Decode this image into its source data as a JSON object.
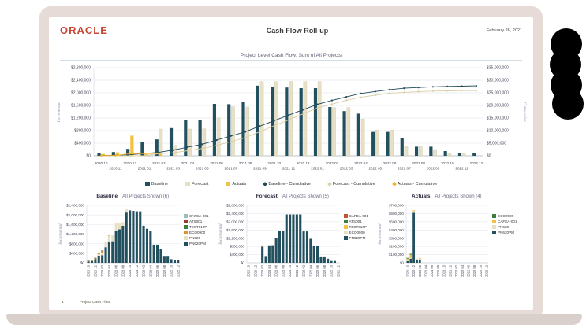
{
  "header": {
    "logo": "ORACLE",
    "title": "Cash Flow Roll-up",
    "date": "February 26, 2021"
  },
  "footer": {
    "page_number": "1",
    "label": "Project Cash Flow"
  },
  "colors": {
    "baseline": "#23505f",
    "forecast": "#e8e0c6",
    "actuals": "#f2c144",
    "baseline_line": "#1f4a58",
    "forecast_line": "#d9cfa6",
    "actuals_line": "#f0b429",
    "oracle_red": "#c74634",
    "bezel": "#e7dbd7",
    "laptop_base": "#d9cfcb",
    "header_rule": "#7ba2bf"
  },
  "chart_data": [
    {
      "type": "combo",
      "title": "Project Level Cash Flow: Sum of All Projects",
      "categories": [
        "2020 10",
        "2020 11",
        "2020 12",
        "2021 01",
        "2021 02",
        "2021 03",
        "2021 04",
        "2021 05",
        "2021 06",
        "2021 07",
        "2021 08",
        "2021 09",
        "2021 10",
        "2021 11",
        "2021 12",
        "2022 01",
        "2022 02",
        "2022 03",
        "2022 04",
        "2022 05",
        "2022 06",
        "2022 07",
        "2022 08",
        "2022 09",
        "2022 10",
        "2022 11",
        "2022 12"
      ],
      "left_axis": {
        "label": "Incremental",
        "min": 0,
        "max": 2800000,
        "step": 400000
      },
      "right_axis": {
        "label": "Cumulative",
        "min": 0,
        "max": 35000000,
        "step": 5000000
      },
      "bar_series": [
        {
          "name": "Baseline",
          "color": "#23505f",
          "values": [
            100000,
            120000,
            220000,
            430000,
            520000,
            880000,
            1150000,
            1150000,
            1650000,
            1640000,
            1700000,
            2230000,
            2190000,
            2170000,
            2150000,
            2150000,
            1550000,
            1420000,
            1340000,
            760000,
            760000,
            560000,
            290000,
            290000,
            150000,
            100000,
            100000
          ]
        },
        {
          "name": "Forecast",
          "color": "#e8e0c6",
          "values": [
            0,
            0,
            0,
            0,
            850000,
            330000,
            850000,
            860000,
            1210000,
            1560000,
            1550000,
            2360000,
            2360000,
            2360000,
            2360000,
            2360000,
            1530000,
            1530000,
            1170000,
            820000,
            820000,
            310000,
            310000,
            200000,
            90000,
            90000,
            0
          ]
        },
        {
          "name": "Actuals",
          "color": "#f2c144",
          "values": [
            60000,
            110000,
            640000,
            50000,
            60000,
            0,
            0,
            0,
            0,
            0,
            0,
            0,
            0,
            0,
            0,
            0,
            0,
            0,
            0,
            0,
            0,
            0,
            0,
            0,
            0,
            0,
            0
          ]
        }
      ],
      "line_series": [
        {
          "name": "Baseline - Cumulative",
          "color": "#1f4a58",
          "values": [
            100000,
            220000,
            440000,
            870000,
            1390000,
            2270000,
            3420000,
            4570000,
            6220000,
            7860000,
            9560000,
            11790000,
            13980000,
            16150000,
            18300000,
            20450000,
            22000000,
            23420000,
            24760000,
            25520000,
            26280000,
            26840000,
            27130000,
            27420000,
            27570000,
            27670000,
            27770000
          ]
        },
        {
          "name": "Forecast - Cumulative",
          "color": "#d9cfa6",
          "values": [
            0,
            0,
            0,
            0,
            850000,
            1180000,
            2030000,
            2890000,
            4100000,
            5660000,
            7210000,
            9570000,
            11930000,
            14290000,
            16650000,
            19010000,
            20540000,
            22070000,
            23240000,
            24060000,
            24880000,
            25190000,
            25500000,
            25700000,
            25790000,
            25880000,
            25880000
          ]
        },
        {
          "name": "Actuals - Cumulative",
          "color": "#f0b429",
          "values": [
            60000,
            170000,
            810000,
            860000,
            920000,
            null,
            null,
            null,
            null,
            null,
            null,
            null,
            null,
            null,
            null,
            null,
            null,
            null,
            null,
            null,
            null,
            null,
            null,
            null,
            null,
            null,
            null
          ]
        }
      ]
    },
    {
      "type": "stacked-bar",
      "title": "Baseline",
      "subtitle": "All Projects Shown (6)",
      "categories": [
        "2020 10",
        "2020 11",
        "2020 12",
        "2021 01",
        "2021 02",
        "2021 03",
        "2021 04",
        "2021 05",
        "2021 06",
        "2021 07",
        "2021 08",
        "2021 09",
        "2021 10",
        "2021 11",
        "2021 12",
        "2022 01",
        "2022 02",
        "2022 03",
        "2022 04",
        "2022 05",
        "2022 06",
        "2022 07",
        "2022 08",
        "2022 09",
        "2022 10",
        "2022 11",
        "2022 12"
      ],
      "y_axis": {
        "label": "Incremental",
        "min": 0,
        "max": 2400000,
        "step": 400000
      },
      "series": [
        {
          "name": "CAFEA-001",
          "color": "#9dbfb8",
          "values": [
            10000,
            10000,
            10000,
            10000,
            10000,
            0,
            0,
            0,
            0,
            0,
            0,
            0,
            0,
            0,
            0,
            0,
            0,
            0,
            0,
            0,
            0,
            0,
            0,
            0,
            0,
            0,
            0
          ]
        },
        {
          "name": "ATS001",
          "color": "#9e3a26",
          "values": [
            10000,
            10000,
            10000,
            10000,
            10000,
            0,
            0,
            0,
            0,
            0,
            0,
            0,
            0,
            0,
            0,
            0,
            0,
            0,
            0,
            0,
            0,
            0,
            0,
            0,
            0,
            0,
            0
          ]
        },
        {
          "name": "TEST010P",
          "color": "#3d7d3f",
          "values": [
            10000,
            10000,
            20000,
            20000,
            20000,
            0,
            0,
            0,
            0,
            0,
            0,
            0,
            0,
            0,
            0,
            0,
            0,
            0,
            0,
            0,
            0,
            0,
            0,
            0,
            0,
            0,
            0
          ]
        },
        {
          "name": "ECO0900",
          "color": "#e0922f",
          "values": [
            20000,
            20000,
            30000,
            40000,
            60000,
            30000,
            20000,
            0,
            0,
            0,
            0,
            0,
            0,
            0,
            0,
            0,
            0,
            0,
            0,
            0,
            0,
            0,
            0,
            0,
            0,
            0,
            0
          ]
        },
        {
          "name": "PN620",
          "color": "#e8e0c6",
          "values": [
            0,
            0,
            0,
            50000,
            100000,
            200000,
            260000,
            250000,
            300000,
            240000,
            150000,
            130000,
            0,
            0,
            0,
            0,
            0,
            0,
            0,
            0,
            0,
            0,
            0,
            0,
            0,
            0,
            0
          ]
        },
        {
          "name": "PN620PM",
          "color": "#23505f",
          "values": [
            50000,
            70000,
            150000,
            300000,
            320000,
            650000,
            870000,
            900000,
            1350000,
            1400000,
            1550000,
            2100000,
            2190000,
            2170000,
            2150000,
            2150000,
            1550000,
            1420000,
            1340000,
            760000,
            760000,
            560000,
            290000,
            290000,
            150000,
            100000,
            100000
          ]
        }
      ]
    },
    {
      "type": "stacked-bar",
      "title": "Forecast",
      "subtitle": "All Projects Shown (5)",
      "categories": [
        "2020 10",
        "2020 11",
        "2020 12",
        "2021 01",
        "2021 02",
        "2021 03",
        "2021 04",
        "2021 05",
        "2021 06",
        "2021 07",
        "2021 08",
        "2021 09",
        "2021 10",
        "2021 11",
        "2021 12",
        "2022 01",
        "2022 02",
        "2022 03",
        "2022 04",
        "2022 05",
        "2022 06",
        "2022 07",
        "2022 08",
        "2022 09",
        "2022 10",
        "2022 11",
        "2022 12"
      ],
      "y_axis": {
        "label": "Incremental",
        "min": 0,
        "max": 2800000,
        "step": 400000
      },
      "series": [
        {
          "name": "CAFEA-001",
          "color": "#c0532f",
          "values": [
            0,
            0,
            0,
            0,
            0,
            0,
            0,
            0,
            0,
            0,
            0,
            0,
            0,
            0,
            0,
            0,
            0,
            0,
            0,
            0,
            0,
            0,
            0,
            0,
            0,
            0,
            0
          ]
        },
        {
          "name": "ATS001",
          "color": "#3d7d3f",
          "values": [
            0,
            0,
            0,
            0,
            0,
            0,
            0,
            0,
            0,
            0,
            0,
            0,
            0,
            0,
            0,
            0,
            0,
            0,
            0,
            0,
            0,
            0,
            0,
            0,
            0,
            0,
            0
          ]
        },
        {
          "name": "TEST010P",
          "color": "#f2c144",
          "values": [
            0,
            0,
            0,
            0,
            60000,
            0,
            0,
            0,
            0,
            0,
            0,
            0,
            0,
            0,
            0,
            0,
            0,
            0,
            0,
            0,
            0,
            0,
            0,
            0,
            0,
            0,
            0
          ]
        },
        {
          "name": "ECO0900",
          "color": "#e8e0c6",
          "values": [
            0,
            0,
            0,
            0,
            0,
            0,
            0,
            0,
            0,
            0,
            0,
            0,
            0,
            0,
            0,
            0,
            0,
            0,
            0,
            0,
            0,
            0,
            0,
            0,
            0,
            0,
            0
          ]
        },
        {
          "name": "PN620PM",
          "color": "#23505f",
          "values": [
            0,
            0,
            0,
            0,
            790000,
            330000,
            850000,
            860000,
            1210000,
            1560000,
            1550000,
            2360000,
            2360000,
            2360000,
            2360000,
            2360000,
            1530000,
            1530000,
            1170000,
            820000,
            820000,
            310000,
            310000,
            200000,
            90000,
            90000,
            0
          ]
        }
      ]
    },
    {
      "type": "stacked-bar",
      "title": "Actuals",
      "subtitle": "All Projects Shown (4)",
      "categories": [
        "2020 10",
        "2020 11",
        "2020 12",
        "2021 01",
        "2021 02",
        "2021 03",
        "2021 04",
        "2021 05",
        "2021 06",
        "2021 07",
        "2021 08",
        "2021 09",
        "2021 10",
        "2021 11",
        "2021 12",
        "2022 01",
        "2022 02",
        "2022 03",
        "2022 04",
        "2022 05",
        "2022 06",
        "2022 07",
        "2022 08",
        "2022 09",
        "2022 10",
        "2022 11",
        "2022 12"
      ],
      "y_axis": {
        "label": "Incremental",
        "min": 0,
        "max": 700000,
        "step": 100000
      },
      "series": [
        {
          "name": "ECO0900",
          "color": "#3d7d3f",
          "values": [
            10000,
            10000,
            0,
            0,
            0,
            0,
            0,
            0,
            0,
            0,
            0,
            0,
            0,
            0,
            0,
            0,
            0,
            0,
            0,
            0,
            0,
            0,
            0,
            0,
            0,
            0,
            0
          ]
        },
        {
          "name": "CAFEA-001",
          "color": "#f2c144",
          "values": [
            20000,
            40000,
            10000,
            0,
            10000,
            0,
            0,
            0,
            0,
            0,
            0,
            0,
            0,
            0,
            0,
            0,
            0,
            0,
            0,
            0,
            0,
            0,
            0,
            0,
            0,
            0,
            0
          ]
        },
        {
          "name": "PN620",
          "color": "#e8e0c6",
          "values": [
            10000,
            10000,
            20000,
            10000,
            10000,
            0,
            0,
            0,
            0,
            0,
            0,
            0,
            0,
            0,
            0,
            0,
            0,
            0,
            0,
            0,
            0,
            0,
            0,
            0,
            0,
            0,
            0
          ]
        },
        {
          "name": "PN620PM",
          "color": "#23505f",
          "values": [
            20000,
            50000,
            610000,
            40000,
            40000,
            0,
            0,
            0,
            0,
            0,
            0,
            0,
            0,
            0,
            0,
            0,
            0,
            0,
            0,
            0,
            0,
            0,
            0,
            0,
            0,
            0,
            0
          ]
        }
      ]
    }
  ]
}
